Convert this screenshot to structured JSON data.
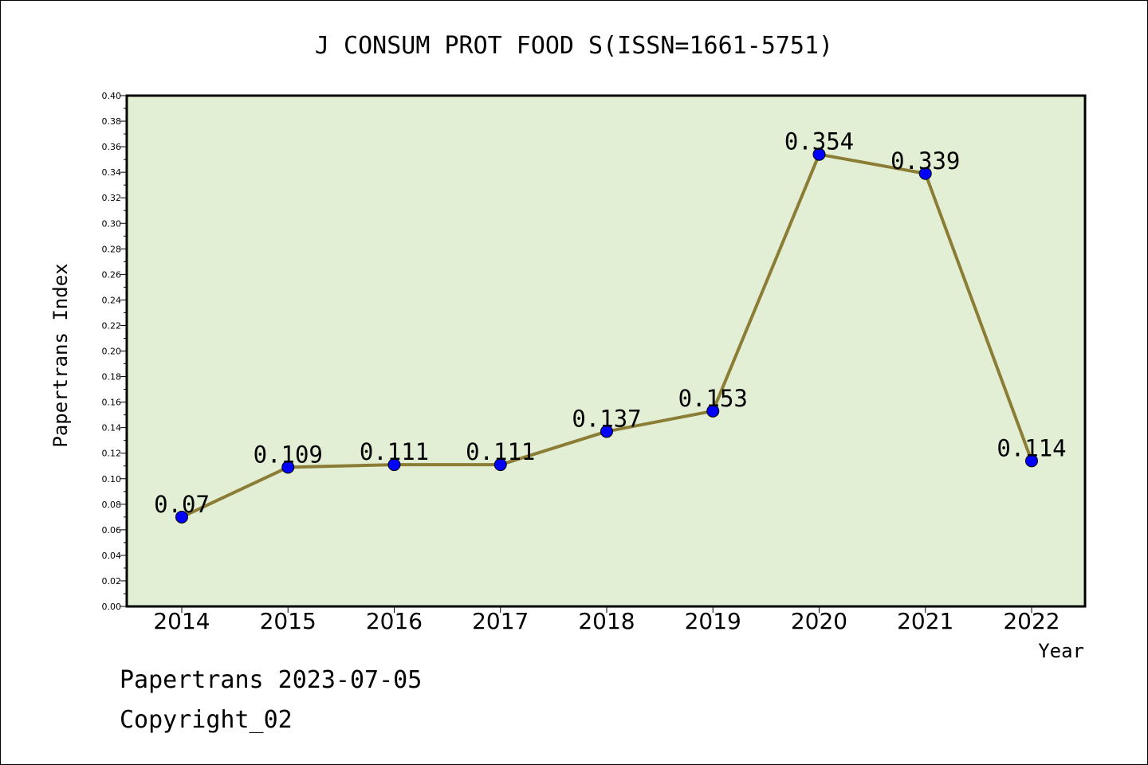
{
  "chart_data": {
    "type": "line",
    "title": "J CONSUM PROT FOOD S(ISSN=1661-5751)",
    "xlabel": "Year",
    "ylabel": "Papertrans Index",
    "categories": [
      "2014",
      "2015",
      "2016",
      "2017",
      "2018",
      "2019",
      "2020",
      "2021",
      "2022"
    ],
    "values": [
      0.07,
      0.109,
      0.111,
      0.111,
      0.137,
      0.153,
      0.354,
      0.339,
      0.114
    ],
    "data_labels": [
      "0.07",
      "0.109",
      "0.111",
      "0.111",
      "0.137",
      "0.153",
      "0.354",
      "0.339",
      "0.114"
    ],
    "ylim": [
      0,
      0.4
    ],
    "y_ticks": [
      "0.00",
      "0.02",
      "0.04",
      "0.06",
      "0.08",
      "0.10",
      "0.12",
      "0.14",
      "0.16",
      "0.18",
      "0.20",
      "0.22",
      "0.24",
      "0.26",
      "0.28",
      "0.30",
      "0.32",
      "0.34",
      "0.36",
      "0.38",
      "0.40"
    ],
    "grid": false,
    "colors": {
      "plot_background": "#e2efd4",
      "line": "#8b7d35",
      "marker": "#0000ff"
    }
  },
  "footer": {
    "date_line": "Papertrans 2023-07-05",
    "copyright_line": "Copyright_02"
  }
}
